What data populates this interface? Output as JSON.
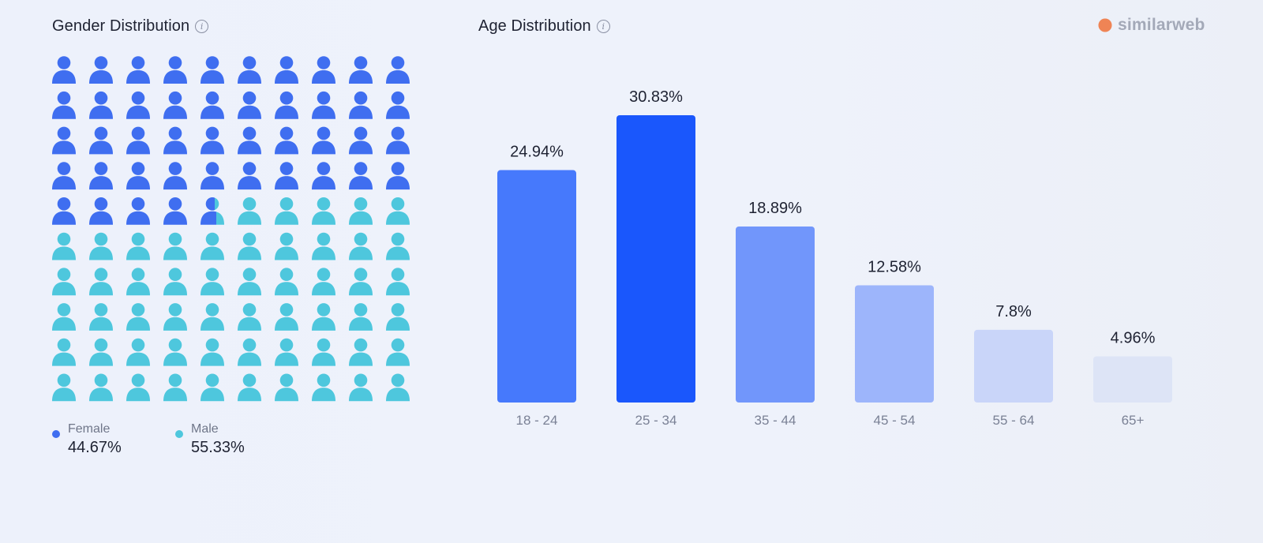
{
  "gender": {
    "title": "Gender Distribution",
    "info_icon": "info-icon",
    "female": {
      "label": "Female",
      "value": "44.67%",
      "percent": 44.67,
      "color": "#3f6ef0"
    },
    "male": {
      "label": "Male",
      "value": "55.33%",
      "percent": 55.33,
      "color": "#4ec7dd"
    }
  },
  "age": {
    "title": "Age Distribution",
    "info_icon": "info-icon"
  },
  "brand": {
    "name": "similarweb",
    "logo_icon": "similarweb-logo-icon",
    "color": "#f39a6b"
  },
  "chart_data": [
    {
      "type": "pictograph",
      "title": "Gender Distribution",
      "categories": [
        "Female",
        "Male"
      ],
      "values": [
        44.67,
        55.33
      ],
      "total_icons": 100
    },
    {
      "type": "bar",
      "title": "Age Distribution",
      "categories": [
        "18 - 24",
        "25 - 34",
        "35 - 44",
        "45 - 54",
        "55 - 64",
        "65+"
      ],
      "values": [
        24.94,
        30.83,
        18.89,
        12.58,
        7.8,
        4.96
      ],
      "data_labels": [
        "24.94%",
        "30.83%",
        "18.89%",
        "12.58%",
        "7.8%",
        "4.96%"
      ],
      "colors": [
        "#4679fc",
        "#1a57fc",
        "#7196fb",
        "#9db5fb",
        "#c9d5f9",
        "#dde4f6"
      ],
      "ylim": [
        0,
        30.83
      ],
      "grid": false,
      "legend": "none"
    }
  ]
}
